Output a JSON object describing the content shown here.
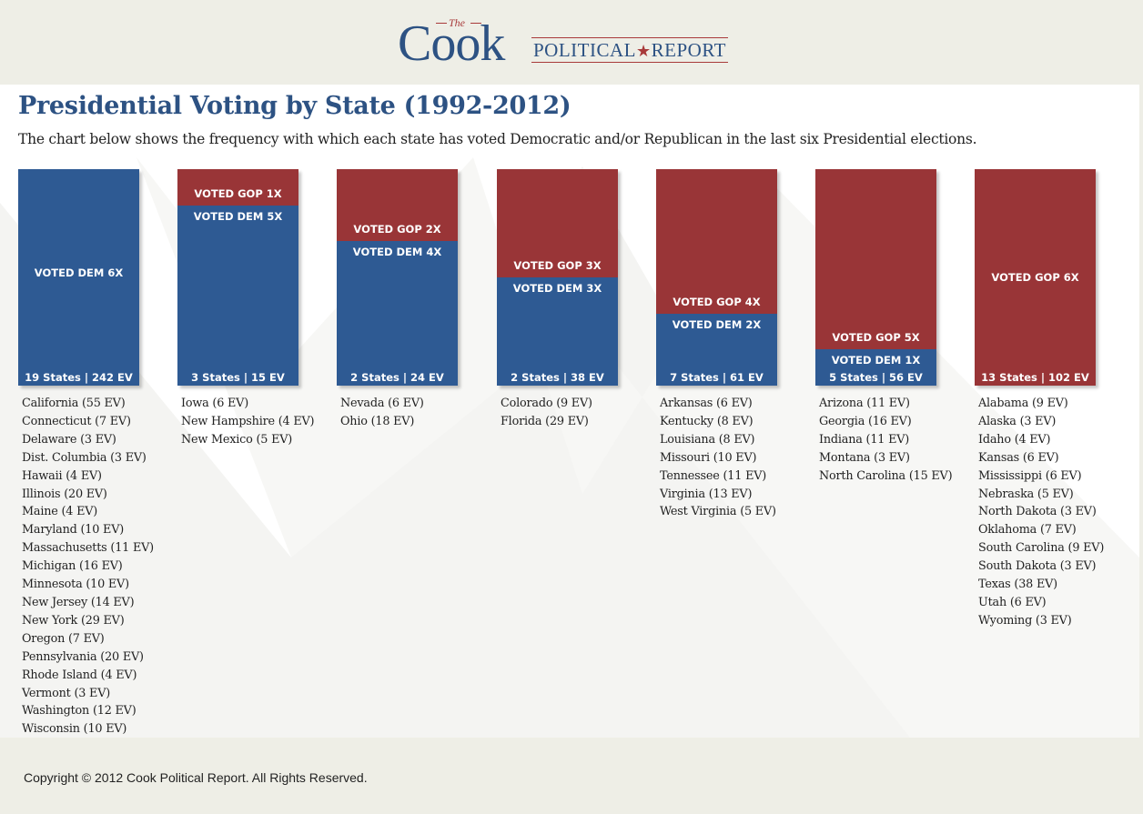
{
  "header": {
    "logo_the": "The",
    "logo_cook": "Cook",
    "logo_political": "POLITICAL",
    "logo_star": "★",
    "logo_report": "REPORT"
  },
  "page": {
    "title": "Presidential Voting by State (1992-2012)",
    "subtitle": "The chart below shows the frequency with which each state has voted Democratic and/or Republican in the last six Presidential elections."
  },
  "colors": {
    "dem": "#2e5a93",
    "gop": "#993537",
    "title": "#2d5283"
  },
  "chart_data": {
    "type": "bar",
    "stacked": true,
    "total_elections": 6,
    "title": "Presidential Voting by State (1992-2012)",
    "categories": [
      "19 States | 242 EV",
      "3 States | 15 EV",
      "2 States | 24 EV",
      "2 States | 38 EV",
      "7 States | 61 EV",
      "5 States | 56 EV",
      "13 States | 102 EV"
    ],
    "series": [
      {
        "name": "VOTED GOP",
        "values": [
          0,
          1,
          2,
          3,
          4,
          5,
          6
        ]
      },
      {
        "name": "VOTED DEM",
        "values": [
          6,
          5,
          4,
          3,
          2,
          1,
          0
        ]
      }
    ],
    "groups": [
      {
        "dem": 6,
        "gop": 0,
        "dem_label": "VOTED DEM 6X",
        "gop_label": "",
        "footer": "19 States | 242 EV",
        "states": [
          "California (55 EV)",
          "Connecticut (7 EV)",
          "Delaware (3 EV)",
          "Dist. Columbia (3 EV)",
          "Hawaii (4 EV)",
          "Illinois (20 EV)",
          "Maine (4 EV)",
          "Maryland (10 EV)",
          "Massachusetts (11 EV)",
          "Michigan (16 EV)",
          "Minnesota (10 EV)",
          "New Jersey (14 EV)",
          "New York (29 EV)",
          "Oregon (7 EV)",
          "Pennsylvania (20 EV)",
          "Rhode Island (4 EV)",
          "Vermont (3 EV)",
          "Washington (12 EV)",
          "Wisconsin (10 EV)"
        ]
      },
      {
        "dem": 5,
        "gop": 1,
        "dem_label": "VOTED DEM 5X",
        "gop_label": "VOTED GOP 1X",
        "footer": "3 States  |  15 EV",
        "states": [
          "Iowa (6 EV)",
          "New Hampshire (4 EV)",
          "New Mexico (5 EV)"
        ]
      },
      {
        "dem": 4,
        "gop": 2,
        "dem_label": "VOTED DEM 4X",
        "gop_label": "VOTED GOP 2X",
        "footer": "2 States  |  24 EV",
        "states": [
          "Nevada (6 EV)",
          "Ohio (18 EV)"
        ]
      },
      {
        "dem": 3,
        "gop": 3,
        "dem_label": "VOTED DEM 3X",
        "gop_label": "VOTED GOP 3X",
        "footer": "2 States  |  38 EV",
        "states": [
          "Colorado (9 EV)",
          "Florida (29 EV)"
        ]
      },
      {
        "dem": 2,
        "gop": 4,
        "dem_label": "VOTED DEM 2X",
        "gop_label": "VOTED GOP 4X",
        "footer": "7 States  |  61 EV",
        "states": [
          "Arkansas (6 EV)",
          "Kentucky (8 EV)",
          "Louisiana (8 EV)",
          "Missouri (10 EV)",
          "Tennessee (11 EV)",
          "Virginia (13 EV)",
          "West Virginia (5 EV)"
        ]
      },
      {
        "dem": 1,
        "gop": 5,
        "dem_label": "VOTED DEM 1X",
        "gop_label": "VOTED GOP 5X",
        "footer": "5 States  |  56 EV",
        "states": [
          "Arizona (11 EV)",
          "Georgia (16 EV)",
          "Indiana (11 EV)",
          "Montana (3 EV)",
          "North Carolina (15 EV)"
        ]
      },
      {
        "dem": 0,
        "gop": 6,
        "dem_label": "",
        "gop_label": "VOTED GOP 6X",
        "footer": "13 States | 102 EV",
        "states": [
          "Alabama (9 EV)",
          "Alaska (3 EV)",
          "Idaho (4 EV)",
          "Kansas (6 EV)",
          "Mississippi (6 EV)",
          "Nebraska (5 EV)",
          "North Dakota (3 EV)",
          "Oklahoma (7 EV)",
          "South Carolina (9 EV)",
          "South Dakota (3 EV)",
          "Texas (38 EV)",
          "Utah (6 EV)",
          "Wyoming (3 EV)"
        ]
      }
    ]
  },
  "footer": {
    "copyright": "Copyright © 2012 Cook Political Report. All Rights Reserved."
  }
}
